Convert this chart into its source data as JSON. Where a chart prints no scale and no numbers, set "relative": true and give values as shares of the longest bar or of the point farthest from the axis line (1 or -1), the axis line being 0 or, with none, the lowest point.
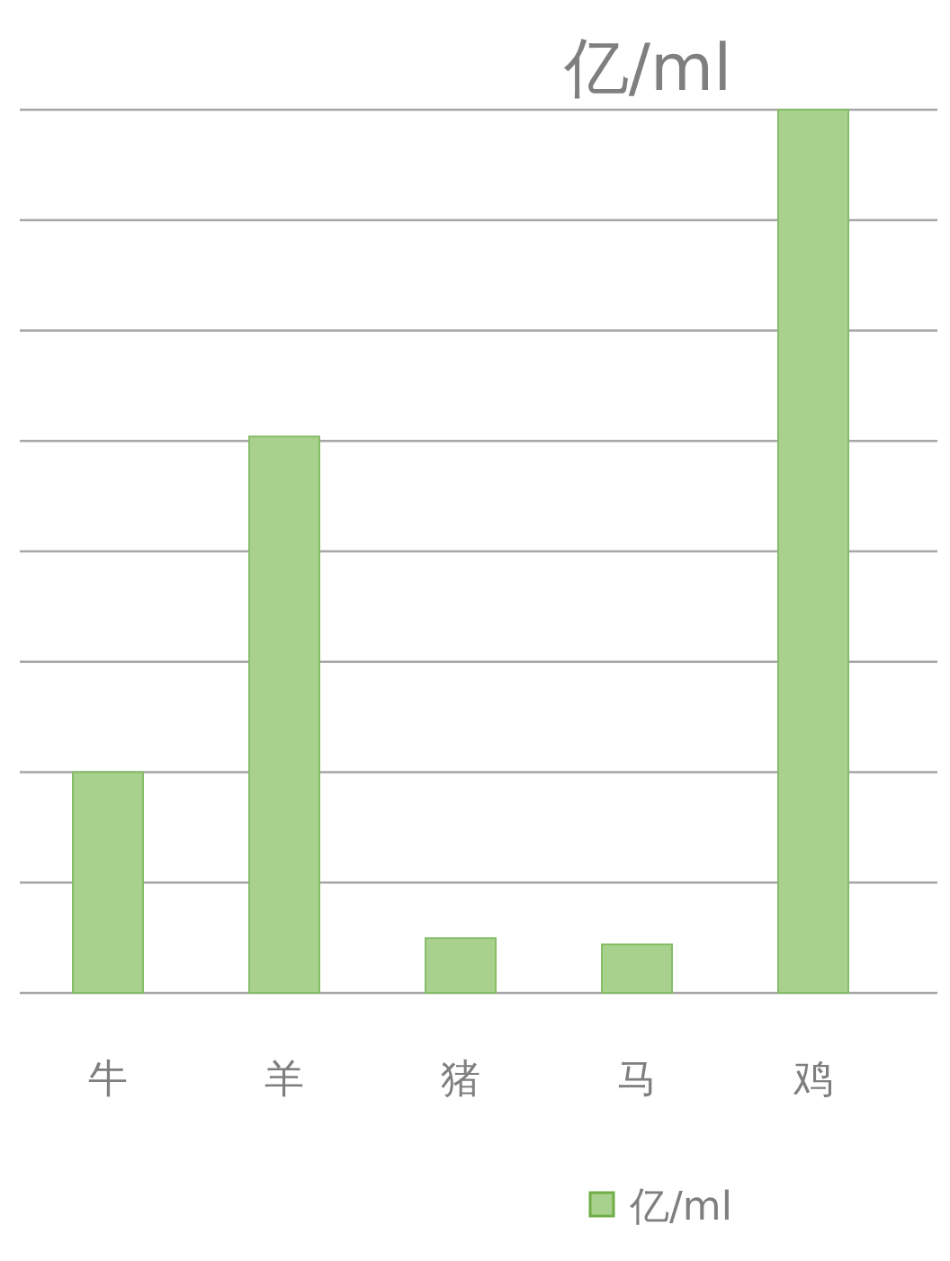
{
  "chart_data": {
    "type": "bar",
    "title": "亿/ml",
    "categories": [
      "牛",
      "羊",
      "猪",
      "马",
      "鸡"
    ],
    "series": [
      {
        "name": "亿/ml",
        "color": "#a9d18e",
        "values": [
          0.25,
          0.63,
          0.062,
          0.055,
          1
        ]
      }
    ],
    "relative": true,
    "grid": "y",
    "legend": "bottom"
  }
}
